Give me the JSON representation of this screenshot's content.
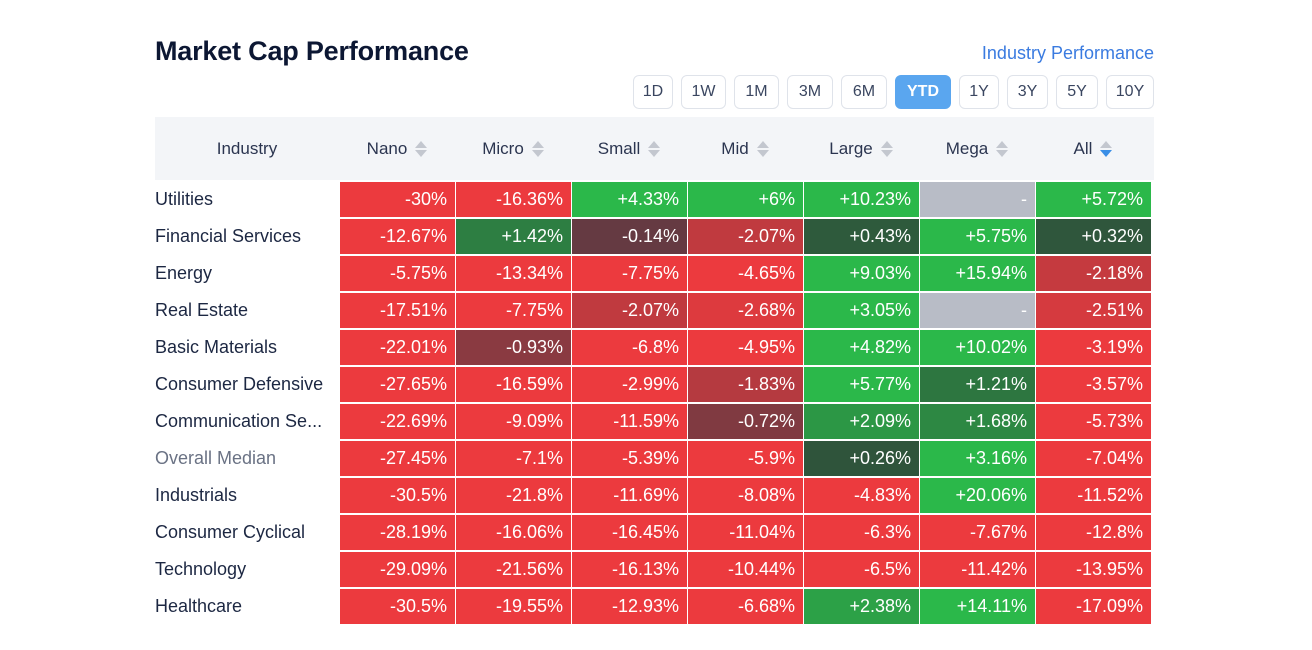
{
  "title": "Market Cap Performance",
  "industry_link": "Industry Performance",
  "periods": [
    {
      "label": "1D",
      "active": false
    },
    {
      "label": "1W",
      "active": false
    },
    {
      "label": "1M",
      "active": false
    },
    {
      "label": "3M",
      "active": false
    },
    {
      "label": "6M",
      "active": false
    },
    {
      "label": "YTD",
      "active": true
    },
    {
      "label": "1Y",
      "active": false
    },
    {
      "label": "3Y",
      "active": false
    },
    {
      "label": "5Y",
      "active": false
    },
    {
      "label": "10Y",
      "active": false
    }
  ],
  "table": {
    "industry_header": "Industry",
    "columns": [
      "Nano",
      "Micro",
      "Small",
      "Mid",
      "Large",
      "Mega",
      "All"
    ],
    "sorted_column": "All",
    "rows": [
      {
        "name": "Utilities",
        "values": [
          "-30%",
          "-16.36%",
          "+4.33%",
          "+6%",
          "+10.23%",
          "-",
          "+5.72%"
        ]
      },
      {
        "name": "Financial Services",
        "values": [
          "-12.67%",
          "+1.42%",
          "-0.14%",
          "-2.07%",
          "+0.43%",
          "+5.75%",
          "+0.32%"
        ]
      },
      {
        "name": "Energy",
        "values": [
          "-5.75%",
          "-13.34%",
          "-7.75%",
          "-4.65%",
          "+9.03%",
          "+15.94%",
          "-2.18%"
        ]
      },
      {
        "name": "Real Estate",
        "values": [
          "-17.51%",
          "-7.75%",
          "-2.07%",
          "-2.68%",
          "+3.05%",
          "-",
          "-2.51%"
        ]
      },
      {
        "name": "Basic Materials",
        "values": [
          "-22.01%",
          "-0.93%",
          "-6.8%",
          "-4.95%",
          "+4.82%",
          "+10.02%",
          "-3.19%"
        ]
      },
      {
        "name": "Consumer Defensive",
        "values": [
          "-27.65%",
          "-16.59%",
          "-2.99%",
          "-1.83%",
          "+5.77%",
          "+1.21%",
          "-3.57%"
        ]
      },
      {
        "name": "Communication Se...",
        "values": [
          "-22.69%",
          "-9.09%",
          "-11.59%",
          "-0.72%",
          "+2.09%",
          "+1.68%",
          "-5.73%"
        ]
      },
      {
        "name": "Overall Median",
        "values": [
          "-27.45%",
          "-7.1%",
          "-5.39%",
          "-5.9%",
          "+0.26%",
          "+3.16%",
          "-7.04%"
        ]
      },
      {
        "name": "Industrials",
        "values": [
          "-30.5%",
          "-21.8%",
          "-11.69%",
          "-8.08%",
          "-4.83%",
          "+20.06%",
          "-11.52%"
        ]
      },
      {
        "name": "Consumer Cyclical",
        "values": [
          "-28.19%",
          "-16.06%",
          "-16.45%",
          "-11.04%",
          "-6.3%",
          "-7.67%",
          "-12.8%"
        ]
      },
      {
        "name": "Technology",
        "values": [
          "-29.09%",
          "-21.56%",
          "-16.13%",
          "-10.44%",
          "-6.5%",
          "-11.42%",
          "-13.95%"
        ]
      },
      {
        "name": "Healthcare",
        "values": [
          "-30.5%",
          "-19.55%",
          "-12.93%",
          "-6.68%",
          "+2.38%",
          "+14.11%",
          "-17.09%"
        ]
      }
    ]
  },
  "colors": {
    "accent": "#5aa6ef",
    "link": "#3a7be0",
    "negative_strong": "#ec3a3e",
    "negative_weak": "#5e3a42",
    "positive_strong": "#2bb84a",
    "positive_weak": "#2f4a3a",
    "no_data": "#b8bcc6"
  }
}
